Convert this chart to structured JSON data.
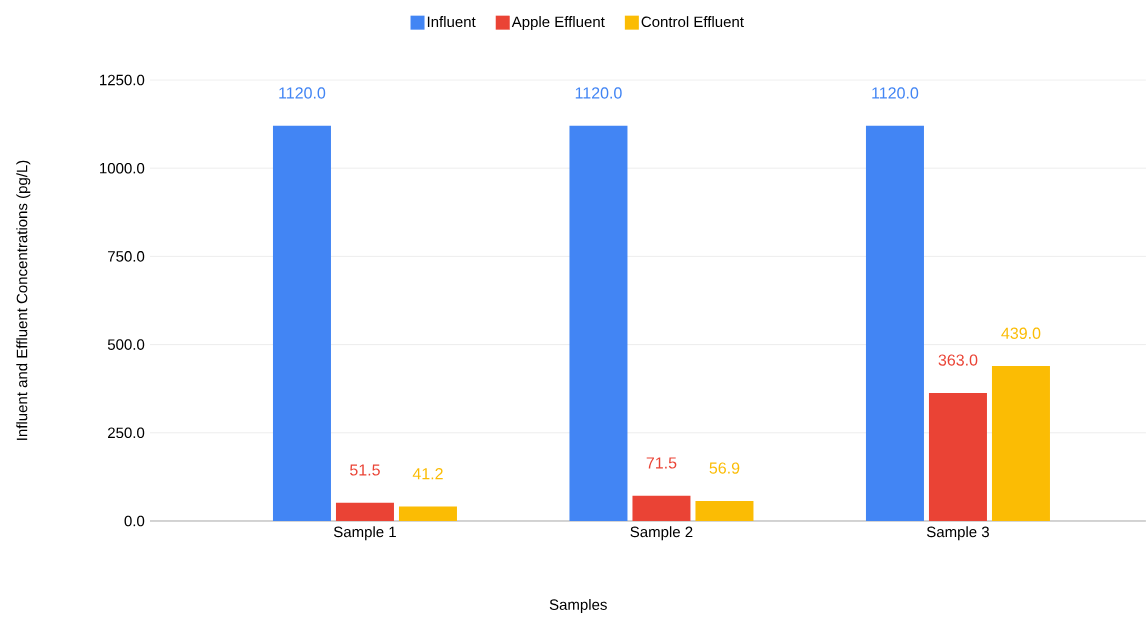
{
  "chart_data": {
    "type": "bar",
    "xlabel": "Samples",
    "ylabel": "Influent and Effluent Concentrations (pg/L)",
    "categories": [
      "Sample 1",
      "Sample 2",
      "Sample 3"
    ],
    "series": [
      {
        "name": "Influent",
        "color": "#4285f4",
        "values": [
          1120,
          1120,
          1120
        ],
        "value_labels": [
          "1120.0",
          "1120.0",
          "1120.0"
        ]
      },
      {
        "name": "Apple Effluent",
        "color": "#ea4335",
        "values": [
          51.5,
          71.5,
          363
        ],
        "value_labels": [
          "51.5",
          "71.5",
          "363.0"
        ]
      },
      {
        "name": "Control Effluent",
        "color": "#fbbc04",
        "values": [
          41.2,
          56.9,
          439
        ],
        "value_labels": [
          "41.2",
          "56.9",
          "439.0"
        ]
      }
    ],
    "ylim": [
      0,
      1250
    ],
    "yticks": [
      {
        "value": 0,
        "label": "0.0"
      },
      {
        "value": 250,
        "label": "250.0"
      },
      {
        "value": 500,
        "label": "500.0"
      },
      {
        "value": 750,
        "label": "750.0"
      },
      {
        "value": 1000,
        "label": "1000.0"
      },
      {
        "value": 1250,
        "label": "1250.0"
      }
    ],
    "grid": "y",
    "legend": "top"
  }
}
